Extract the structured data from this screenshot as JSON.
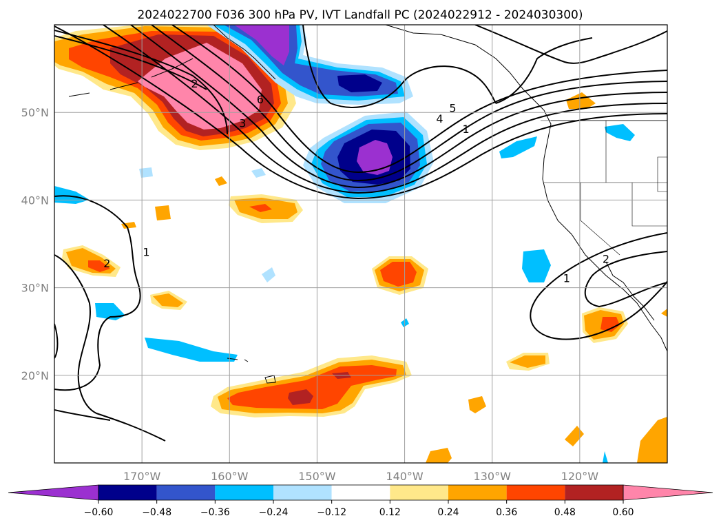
{
  "title": "2024022700 F036 300 hPa PV, IVT Landfall PC (2024022912 - 2024030300)",
  "map": {
    "lon_range": [
      -180,
      -110
    ],
    "lat_range": [
      10,
      60
    ],
    "lat_ticks": [
      {
        "lat": 50,
        "label": "50°N"
      },
      {
        "lat": 40,
        "label": "40°N"
      },
      {
        "lat": 30,
        "label": "30°N"
      },
      {
        "lat": 20,
        "label": "20°N"
      }
    ],
    "lon_ticks": [
      {
        "lon": -170,
        "label": "170°W"
      },
      {
        "lon": -160,
        "label": "160°W"
      },
      {
        "lon": -150,
        "label": "150°W"
      },
      {
        "lon": -140,
        "label": "140°W"
      },
      {
        "lon": -130,
        "label": "130°W"
      },
      {
        "lon": -120,
        "label": "120°W"
      }
    ],
    "grid": true,
    "contour_labels": [
      {
        "text": "2",
        "lon": -164,
        "lat": 53
      },
      {
        "text": "3",
        "lon": -158.5,
        "lat": 48.5
      },
      {
        "text": "6",
        "lon": -156.5,
        "lat": 51.2
      },
      {
        "text": "4",
        "lon": -136,
        "lat": 49
      },
      {
        "text": "5",
        "lon": -134.5,
        "lat": 50.2
      },
      {
        "text": "1",
        "lon": -133,
        "lat": 47.8
      },
      {
        "text": "2",
        "lon": -174,
        "lat": 32.5
      },
      {
        "text": "1",
        "lon": -169.5,
        "lat": 33.8
      },
      {
        "text": "1",
        "lon": -121.5,
        "lat": 30.8
      },
      {
        "text": "2",
        "lon": -117,
        "lat": 33
      }
    ]
  },
  "colorbar": {
    "ticks": [
      "−0.60",
      "−0.48",
      "−0.36",
      "−0.24",
      "−0.12",
      "0.12",
      "0.24",
      "0.36",
      "0.48",
      "0.60"
    ],
    "colors": [
      "#9b30d0",
      "#00008b",
      "#3355cc",
      "#00bfff",
      "#b0e2ff",
      "#ffffff",
      "#ffe88a",
      "#ffa500",
      "#ff4500",
      "#b22222",
      "#ff85aa",
      "#ff85aa"
    ]
  }
}
